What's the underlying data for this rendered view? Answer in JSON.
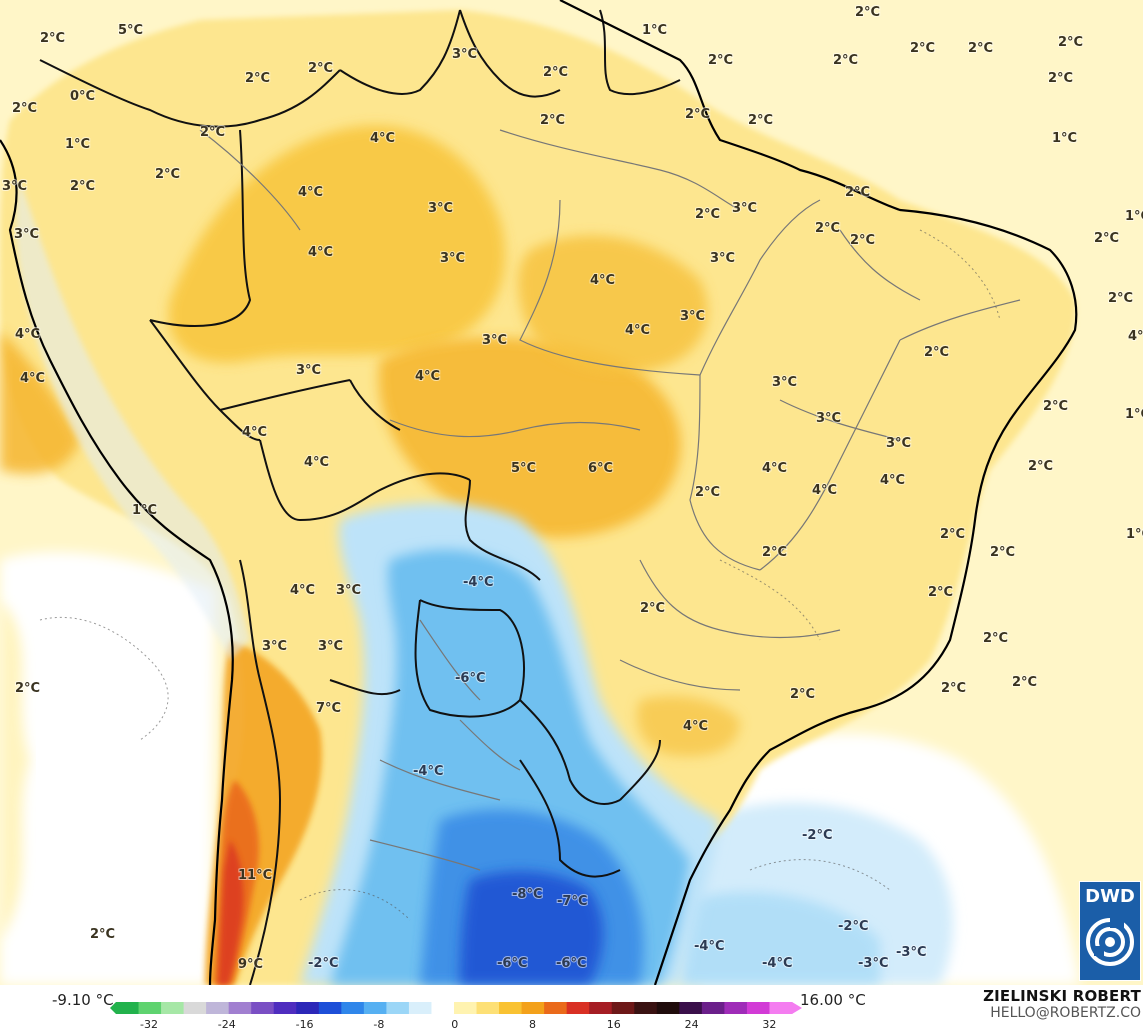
{
  "legend": {
    "min_label": "-9.10 °C",
    "max_label": "16.00 °C",
    "ticks": [
      "-32",
      "-24",
      "-16",
      "-8",
      "0",
      "8",
      "16",
      "24",
      "32"
    ],
    "colors": [
      "#22b24c",
      "#5fd36f",
      "#a6e7a6",
      "#d9d9d9",
      "#bfb6d9",
      "#a17fd0",
      "#7a4fc4",
      "#4f2dbf",
      "#2c27b8",
      "#1d4fd8",
      "#2f86ea",
      "#56b0f2",
      "#9bd6f7",
      "#d9effb",
      "#ffffff",
      "#fff3b0",
      "#fde076",
      "#f9c232",
      "#f3a11b",
      "#ea6a1b",
      "#d93024",
      "#a51d24",
      "#6d1818",
      "#3a1212",
      "#200c0c",
      "#3a0f4a",
      "#6b1f8a",
      "#9f2cb8",
      "#d23bd6",
      "#f47df0"
    ]
  },
  "credit": {
    "name": "ZIELINSKI ROBERT",
    "email": "HELLO@ROBERTZ.CO"
  },
  "logo": {
    "text": "DWD"
  },
  "labels": [
    {
      "t": "2°C"
    },
    {
      "t": "5°C"
    },
    {
      "t": "2°C"
    },
    {
      "t": "0°C"
    },
    {
      "t": "2°C"
    },
    {
      "t": "1°C"
    },
    {
      "t": "2°C"
    },
    {
      "t": "2°C"
    },
    {
      "t": "3°C"
    },
    {
      "t": "2°C"
    },
    {
      "t": "2°C"
    },
    {
      "t": "3°C"
    },
    {
      "t": "1°C"
    },
    {
      "t": "2°C"
    },
    {
      "t": "2°C"
    },
    {
      "t": "2°C"
    },
    {
      "t": "2°C"
    },
    {
      "t": "2°C"
    },
    {
      "t": "2°C"
    },
    {
      "t": "2°C"
    },
    {
      "t": "4°C"
    },
    {
      "t": "2°C"
    },
    {
      "t": "1°C"
    },
    {
      "t": "2°C"
    },
    {
      "t": "2°C"
    },
    {
      "t": "4°C"
    },
    {
      "t": "4°C"
    },
    {
      "t": "3°C"
    },
    {
      "t": "3°C"
    },
    {
      "t": "2°C"
    },
    {
      "t": "3°C"
    },
    {
      "t": "2°C"
    },
    {
      "t": "2°C"
    },
    {
      "t": "1°C"
    },
    {
      "t": "2°C"
    },
    {
      "t": "3°C"
    },
    {
      "t": "4°C"
    },
    {
      "t": "4°C"
    },
    {
      "t": "3°C"
    },
    {
      "t": "3°C"
    },
    {
      "t": "2°C"
    },
    {
      "t": "4°C"
    },
    {
      "t": "4°C"
    },
    {
      "t": "3°C"
    },
    {
      "t": "4°C"
    },
    {
      "t": "2°C"
    },
    {
      "t": "3°C"
    },
    {
      "t": "1°C"
    },
    {
      "t": "3°C"
    },
    {
      "t": "4°C"
    },
    {
      "t": "4°C"
    },
    {
      "t": "5°C"
    },
    {
      "t": "6°C"
    },
    {
      "t": "4°C"
    },
    {
      "t": "4°C"
    },
    {
      "t": "2°C"
    },
    {
      "t": "4°C"
    },
    {
      "t": "1°C"
    },
    {
      "t": "2°C"
    },
    {
      "t": "2°C"
    },
    {
      "t": "2°C"
    },
    {
      "t": "1°C"
    },
    {
      "t": "4°C"
    },
    {
      "t": "3°C"
    },
    {
      "t": "-4°C"
    },
    {
      "t": "2°C"
    },
    {
      "t": "4°C"
    },
    {
      "t": "3°C"
    },
    {
      "t": "3°C"
    },
    {
      "t": "2°C"
    },
    {
      "t": "-6°C"
    },
    {
      "t": "2°C"
    },
    {
      "t": "2°C"
    },
    {
      "t": "2°C"
    },
    {
      "t": "7°C"
    },
    {
      "t": "3°C"
    },
    {
      "t": "3°C"
    },
    {
      "t": "4°C"
    },
    {
      "t": "2°C"
    },
    {
      "t": "-4°C"
    },
    {
      "t": "2°C"
    },
    {
      "t": "2°C"
    },
    {
      "t": "2°C"
    },
    {
      "t": "-2°C"
    },
    {
      "t": "2°C"
    },
    {
      "t": "11°C"
    },
    {
      "t": "-8°C"
    },
    {
      "t": "-7°C"
    },
    {
      "t": "2°C"
    },
    {
      "t": "-2°C"
    },
    {
      "t": "2°C"
    },
    {
      "t": "-4°C"
    },
    {
      "t": "9°C"
    },
    {
      "t": "-2°C"
    },
    {
      "t": "-6°C"
    },
    {
      "t": "-6°C"
    },
    {
      "t": "-4°C"
    },
    {
      "t": "-3°C"
    },
    {
      "t": "-3°C"
    }
  ]
}
